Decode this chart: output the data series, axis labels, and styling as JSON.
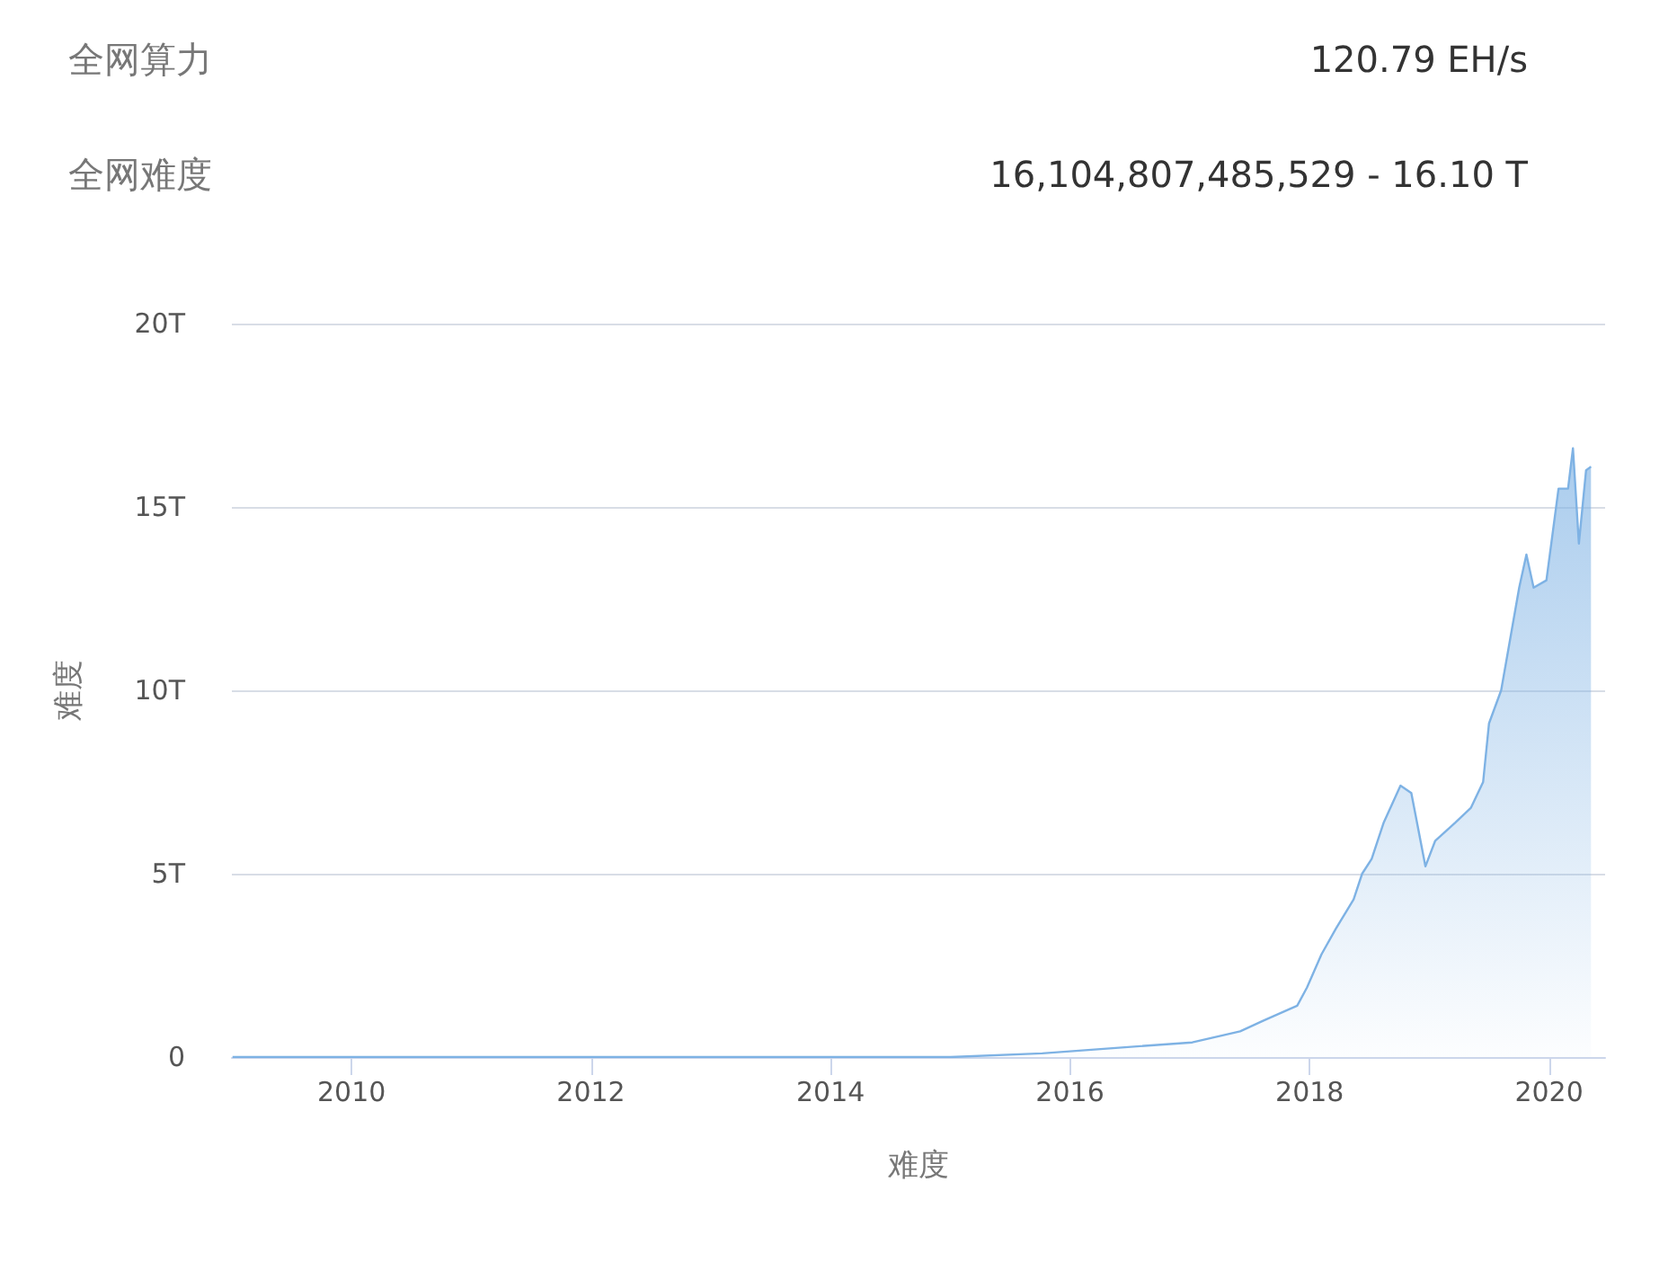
{
  "chart_data": {
    "type": "area",
    "xlabel": "难度",
    "ylabel": "难度",
    "annotations": [
      "全网算力",
      "120.79 EH/s",
      "全网难度",
      "16,104,807,485,529 - 16.10 T"
    ],
    "xlim": [
      "2009-01-01",
      "2020-06-20"
    ],
    "xticks": [
      {
        "value": "2010-01-01",
        "label": "2010"
      },
      {
        "value": "2012-01-01",
        "label": "2012"
      },
      {
        "value": "2014-01-01",
        "label": "2014"
      },
      {
        "value": "2016-01-01",
        "label": "2016"
      },
      {
        "value": "2018-01-01",
        "label": "2018"
      },
      {
        "value": "2020-01-01",
        "label": "2020"
      }
    ],
    "ylim": [
      0,
      20
    ],
    "yticks": [
      0,
      {
        "value": 5,
        "label": "5T"
      },
      {
        "value": 10,
        "label": "10T"
      },
      {
        "value": 15,
        "label": "15T"
      },
      {
        "value": 20,
        "label": "20T"
      }
    ],
    "grid": "y",
    "marker": "none",
    "line_style": "solid",
    "x": [
      "2009-01-03",
      "2011-01-01",
      "2013-01-01",
      "2014-01-01",
      "2015-01-01",
      "2015-10-08",
      "2016-03-06",
      "2017-01-08",
      "2017-06-03",
      "2017-08-15",
      "2017-10-30",
      "2017-11-24",
      "2017-12-24",
      "2018-02-06",
      "2018-03-22",
      "2018-05-15",
      "2018-06-10",
      "2018-07-09",
      "2018-08-15",
      "2018-10-05",
      "2018-11-07",
      "2018-12-20",
      "2019-01-19",
      "2019-03-22",
      "2019-05-08",
      "2019-06-14",
      "2019-07-02",
      "2019-08-08",
      "2019-10-02",
      "2019-10-24",
      "2019-11-15",
      "2019-12-24",
      "2020-01-30",
      "2020-02-28",
      "2020-03-14",
      "2020-04-01",
      "2020-04-23",
      "2020-05-08"
    ],
    "series": [
      {
        "color": "#7eb2e4",
        "values": [
          0,
          0,
          0,
          0,
          0,
          0.1,
          0.2,
          0.4,
          0.7,
          1.0,
          1.3,
          1.4,
          1.9,
          2.8,
          3.5,
          4.3,
          5.0,
          5.4,
          6.4,
          7.4,
          7.2,
          5.2,
          5.9,
          6.4,
          6.8,
          7.5,
          9.1,
          10.0,
          12.8,
          13.7,
          12.8,
          13.0,
          15.5,
          15.5,
          16.6,
          14.0,
          16.0,
          16.1
        ]
      }
    ]
  }
}
